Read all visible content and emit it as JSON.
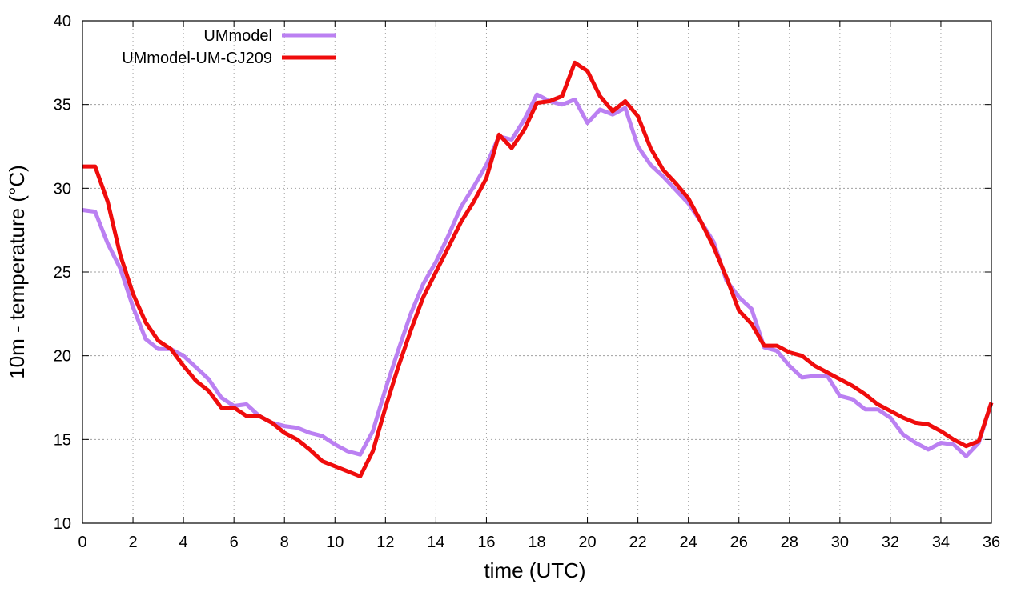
{
  "chart_data": {
    "type": "line",
    "title": "",
    "xlabel": "time (UTC)",
    "ylabel": "10m - temperature (°C)",
    "xlim": [
      0,
      36
    ],
    "ylim": [
      10,
      40
    ],
    "xticks": [
      0,
      2,
      4,
      6,
      8,
      10,
      12,
      14,
      16,
      18,
      20,
      22,
      24,
      26,
      28,
      30,
      32,
      34,
      36
    ],
    "yticks": [
      10,
      15,
      20,
      25,
      30,
      35,
      40
    ],
    "grid": true,
    "legend_position": "top-left",
    "series": [
      {
        "name": "UMmodel",
        "color": "#bb80f2",
        "x": [
          0,
          0.5,
          1,
          1.5,
          2,
          2.5,
          3,
          3.5,
          4,
          4.5,
          5,
          5.5,
          6,
          6.5,
          7,
          7.5,
          8,
          8.5,
          9,
          9.5,
          10,
          10.5,
          11,
          11.5,
          12,
          12.5,
          13,
          13.5,
          14,
          14.5,
          15,
          15.5,
          16,
          16.5,
          17,
          17.5,
          18,
          18.5,
          19,
          19.5,
          20,
          20.5,
          21,
          21.5,
          22,
          22.5,
          23,
          23.5,
          24,
          24.5,
          25,
          25.5,
          26,
          26.5,
          27,
          27.5,
          28,
          28.5,
          29,
          29.5,
          30,
          30.5,
          31,
          31.5,
          32,
          32.5,
          33,
          33.5,
          34,
          34.5,
          35,
          35.5,
          36
        ],
        "values": [
          28.7,
          28.6,
          26.7,
          25.2,
          22.9,
          21.0,
          20.4,
          20.4,
          20.0,
          19.3,
          18.6,
          17.5,
          17.0,
          17.1,
          16.4,
          16.0,
          15.8,
          15.7,
          15.4,
          15.2,
          14.7,
          14.3,
          14.1,
          15.5,
          18.0,
          20.3,
          22.5,
          24.3,
          25.6,
          27.2,
          28.9,
          30.1,
          31.4,
          33.1,
          32.9,
          34.1,
          35.6,
          35.2,
          35.0,
          35.3,
          33.9,
          34.7,
          34.4,
          34.8,
          32.5,
          31.4,
          30.7,
          29.9,
          29.1,
          28.0,
          26.8,
          24.5,
          23.5,
          22.8,
          20.5,
          20.3,
          19.4,
          18.7,
          18.8,
          18.8,
          17.6,
          17.4,
          16.8,
          16.8,
          16.3,
          15.3,
          14.8,
          14.4,
          14.8,
          14.7,
          14.0,
          14.8,
          17.2
        ]
      },
      {
        "name": "UMmodel-UM-CJ209",
        "color": "#ef0c0c",
        "x": [
          0,
          0.5,
          1,
          1.5,
          2,
          2.5,
          3,
          3.5,
          4,
          4.5,
          5,
          5.5,
          6,
          6.5,
          7,
          7.5,
          8,
          8.5,
          9,
          9.5,
          10,
          10.5,
          11,
          11.5,
          12,
          12.5,
          13,
          13.5,
          14,
          14.5,
          15,
          15.5,
          16,
          16.5,
          17,
          17.5,
          18,
          18.5,
          19,
          19.5,
          20,
          20.5,
          21,
          21.5,
          22,
          22.5,
          23,
          23.5,
          24,
          24.5,
          25,
          25.5,
          26,
          26.5,
          27,
          27.5,
          28,
          28.5,
          29,
          29.5,
          30,
          30.5,
          31,
          31.5,
          32,
          32.5,
          33,
          33.5,
          34,
          34.5,
          35,
          35.5,
          36
        ],
        "values": [
          31.3,
          31.3,
          29.2,
          26.0,
          23.7,
          22.0,
          20.9,
          20.4,
          19.4,
          18.5,
          17.9,
          16.9,
          16.9,
          16.4,
          16.4,
          16.0,
          15.4,
          15.0,
          14.4,
          13.7,
          13.4,
          13.1,
          12.8,
          14.3,
          16.9,
          19.3,
          21.5,
          23.5,
          25.0,
          26.5,
          28.0,
          29.2,
          30.6,
          33.2,
          32.4,
          33.5,
          35.1,
          35.2,
          35.5,
          37.5,
          37.0,
          35.5,
          34.6,
          35.2,
          34.3,
          32.4,
          31.1,
          30.3,
          29.4,
          28.0,
          26.5,
          24.7,
          22.7,
          21.9,
          20.6,
          20.6,
          20.2,
          20.0,
          19.4,
          19.0,
          18.6,
          18.2,
          17.7,
          17.1,
          16.7,
          16.3,
          16.0,
          15.9,
          15.5,
          15.0,
          14.6,
          14.9,
          17.2
        ]
      }
    ]
  }
}
